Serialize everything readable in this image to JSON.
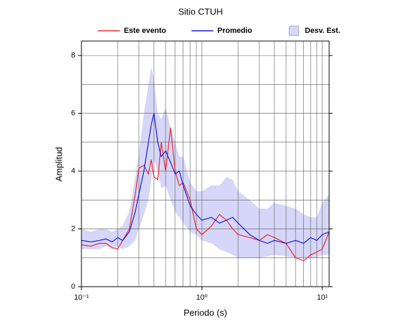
{
  "chart_data": {
    "type": "line",
    "title": "Sitio CTUH",
    "xlabel": "Periodo (s)",
    "ylabel": "Amplitud",
    "xscale": "log",
    "xlim": [
      0.1,
      11.4
    ],
    "ylim": [
      0,
      8.5
    ],
    "xticks": [
      {
        "value": 0.1,
        "label": "10⁻¹"
      },
      {
        "value": 1,
        "label": "10⁰"
      },
      {
        "value": 10,
        "label": "10¹"
      }
    ],
    "xminor": [
      0.2,
      0.3,
      0.4,
      0.5,
      0.6,
      0.7,
      0.8,
      0.9,
      2,
      3,
      4,
      5,
      6,
      7,
      8,
      9
    ],
    "yticks": [
      0,
      2,
      4,
      6,
      8
    ],
    "yminor": [
      1,
      3,
      5,
      7
    ],
    "grid": true,
    "legend": "top",
    "x": [
      0.1,
      0.12,
      0.14,
      0.16,
      0.18,
      0.2,
      0.22,
      0.25,
      0.28,
      0.3,
      0.33,
      0.36,
      0.38,
      0.4,
      0.43,
      0.46,
      0.5,
      0.55,
      0.6,
      0.65,
      0.7,
      0.8,
      0.9,
      1.0,
      1.2,
      1.4,
      1.6,
      1.8,
      2,
      2.5,
      3,
      3.5,
      4,
      5,
      6,
      7,
      8,
      9,
      10,
      11.4
    ],
    "series": [
      {
        "name": "Este evento",
        "color": "#e8282d",
        "values": [
          1.45,
          1.4,
          1.5,
          1.5,
          1.35,
          1.3,
          1.6,
          2.0,
          3.2,
          4.1,
          4.2,
          3.9,
          4.4,
          3.8,
          3.7,
          5.0,
          4.0,
          5.5,
          4.0,
          3.5,
          3.6,
          3.0,
          2.0,
          1.8,
          2.1,
          2.5,
          2.3,
          2.0,
          1.8,
          1.7,
          1.6,
          1.8,
          1.7,
          1.5,
          1.0,
          0.9,
          1.1,
          1.2,
          1.3,
          1.9
        ]
      },
      {
        "name": "Promedio",
        "color": "#1515d6",
        "values": [
          1.6,
          1.55,
          1.6,
          1.65,
          1.55,
          1.7,
          1.6,
          1.9,
          2.6,
          3.2,
          4.0,
          5.0,
          5.6,
          6.0,
          5.0,
          4.5,
          4.7,
          4.3,
          3.9,
          4.0,
          3.5,
          2.8,
          2.5,
          2.3,
          2.4,
          2.2,
          2.3,
          2.4,
          2.2,
          1.8,
          1.6,
          1.5,
          1.6,
          1.5,
          1.6,
          1.5,
          1.7,
          1.6,
          1.8,
          1.9
        ]
      },
      {
        "name": "Desv. Est.",
        "color": "#d6d6f8",
        "upper": [
          2.0,
          1.9,
          2.0,
          2.0,
          1.9,
          2.0,
          2.1,
          2.6,
          3.8,
          4.6,
          6.0,
          7.0,
          7.6,
          7.2,
          6.0,
          5.8,
          6.2,
          5.5,
          5.0,
          4.5,
          4.5,
          3.6,
          3.3,
          3.3,
          3.5,
          3.5,
          3.8,
          3.7,
          3.3,
          3.0,
          2.7,
          2.7,
          2.9,
          2.8,
          2.7,
          2.5,
          2.4,
          2.4,
          2.9,
          3.2
        ],
        "lower": [
          1.3,
          1.3,
          1.3,
          1.4,
          1.3,
          1.4,
          1.3,
          1.4,
          1.6,
          2.0,
          2.5,
          3.0,
          3.7,
          4.4,
          4.0,
          3.4,
          3.5,
          3.0,
          2.6,
          2.4,
          2.2,
          1.9,
          1.8,
          1.6,
          1.5,
          1.3,
          1.2,
          1.1,
          1.0,
          1.0,
          1.0,
          1.05,
          1.1,
          1.05,
          1.0,
          1.0,
          1.0,
          1.0,
          1.1,
          1.1
        ]
      }
    ]
  }
}
